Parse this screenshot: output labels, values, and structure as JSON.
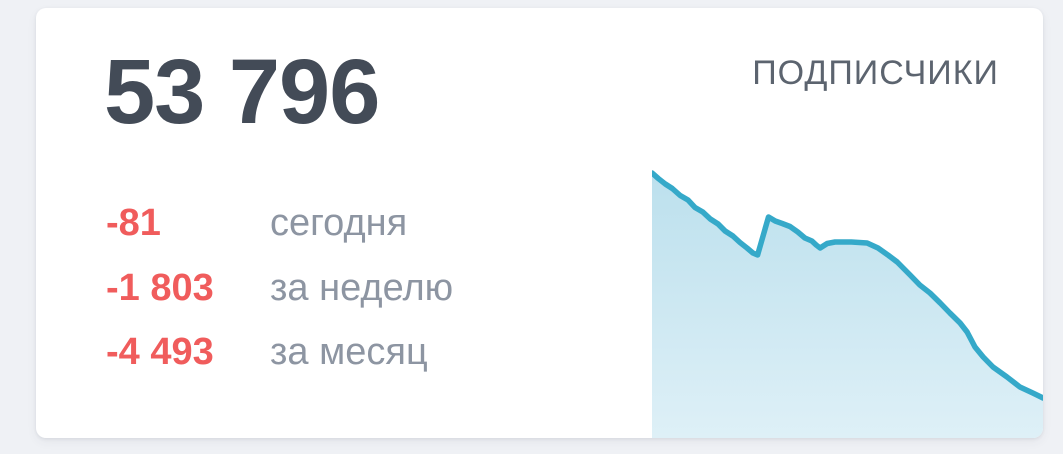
{
  "theme": {
    "page-bg": "#eff1f5",
    "card-bg": "#ffffff",
    "total-color": "#434b57",
    "title-color": "#5c646f",
    "negative-color": "#f05c5c",
    "label-color": "#8d95a2",
    "accent": "#35a9c9",
    "fill-top": "#bce0ed",
    "fill-bottom": "#def0f7"
  },
  "card": {
    "title": "ПОДПИСЧИКИ",
    "total": "53 796",
    "stats": [
      {
        "delta": "-81",
        "label": "сегодня"
      },
      {
        "delta": "-1 803",
        "label": "за неделю"
      },
      {
        "delta": "-4 493",
        "label": "за месяц"
      }
    ]
  },
  "chart_data": {
    "type": "area",
    "title": "ПОДПИСЧИКИ",
    "xlabel": "",
    "ylabel": "",
    "ylim": [
      53796,
      58296
    ],
    "grid": false,
    "legend": false,
    "axes_visible": false,
    "series": [
      {
        "name": "Подписчики",
        "points": [
          [
            0,
            58296
          ],
          [
            1.6,
            58186
          ],
          [
            3.4,
            58076
          ],
          [
            5.2,
            57986
          ],
          [
            7.2,
            57846
          ],
          [
            9.2,
            57756
          ],
          [
            11.0,
            57606
          ],
          [
            13.0,
            57516
          ],
          [
            14.9,
            57376
          ],
          [
            16.9,
            57276
          ],
          [
            18.7,
            57136
          ],
          [
            20.7,
            57036
          ],
          [
            22.5,
            56906
          ],
          [
            24.3,
            56796
          ],
          [
            25.8,
            56696
          ],
          [
            27.0,
            56656
          ],
          [
            29.8,
            57416
          ],
          [
            31.5,
            57336
          ],
          [
            33.3,
            57286
          ],
          [
            35.3,
            57226
          ],
          [
            37.3,
            57116
          ],
          [
            39.1,
            56996
          ],
          [
            40.9,
            56936
          ],
          [
            42.0,
            56856
          ],
          [
            43.0,
            56796
          ],
          [
            44.8,
            56886
          ],
          [
            46.8,
            56916
          ],
          [
            51.0,
            56916
          ],
          [
            55.0,
            56896
          ],
          [
            57.8,
            56796
          ],
          [
            60.5,
            56646
          ],
          [
            62.7,
            56516
          ],
          [
            66.0,
            56256
          ],
          [
            68.5,
            56056
          ],
          [
            71.1,
            55896
          ],
          [
            73.7,
            55696
          ],
          [
            76.2,
            55496
          ],
          [
            78.8,
            55296
          ],
          [
            80.6,
            55116
          ],
          [
            82.6,
            54816
          ],
          [
            84.7,
            54616
          ],
          [
            87.2,
            54416
          ],
          [
            90.8,
            54216
          ],
          [
            94.1,
            54016
          ],
          [
            97.4,
            53896
          ],
          [
            100,
            53796
          ]
        ]
      }
    ]
  }
}
